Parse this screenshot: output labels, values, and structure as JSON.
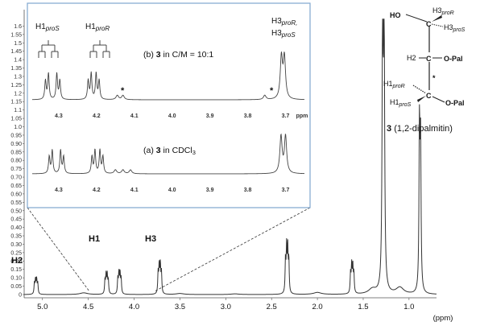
{
  "chart_data": [
    {
      "type": "line",
      "name": "main-spectrum",
      "xlabel": "(ppm)",
      "xlim": [
        5.2,
        0.7
      ],
      "ylim": [
        0,
        1.65
      ],
      "x_ticks": [
        "5.0",
        "4.5",
        "4.0",
        "3.5",
        "3.0",
        "2.5",
        "2.0",
        "1.5",
        "1.0"
      ],
      "y_ticks": [
        "0",
        "0.05",
        "0.10",
        "0.15",
        "0.20",
        "0.25",
        "0.30",
        "0.35",
        "0.40",
        "0.45",
        "0.50",
        "0.55",
        "0.60",
        "0.65",
        "0.70",
        "0.75",
        "0.80",
        "0.85",
        "0.90",
        "0.95",
        "1.0",
        "1.05",
        "1.1",
        "1.15",
        "1.2",
        "1.25",
        "1.3",
        "1.35",
        "1.4",
        "1.45",
        "1.5",
        "1.55",
        "1.6"
      ],
      "peaks": [
        {
          "label": "H2",
          "x": 5.07,
          "height": 0.085
        },
        {
          "label": "H1",
          "x": 4.3,
          "height": 0.11
        },
        {
          "label": "",
          "x": 4.16,
          "height": 0.12
        },
        {
          "label": "H3",
          "x": 3.72,
          "height": 0.165
        },
        {
          "label": "",
          "x": 2.33,
          "height": 0.26
        },
        {
          "label": "",
          "x": 1.62,
          "height": 0.16
        },
        {
          "label": "",
          "x": 1.28,
          "height": 1.62
        },
        {
          "label": "",
          "x": 0.88,
          "height": 0.97
        }
      ]
    },
    {
      "type": "line",
      "name": "inset-spectra",
      "xlabel": "ppm",
      "xlim": [
        4.37,
        3.65
      ],
      "x_ticks": [
        "4.3",
        "4.2",
        "4.1",
        "4.0",
        "3.9",
        "3.8",
        "3.7"
      ],
      "series": [
        {
          "name": "(b) 3 in C/M = 10:1",
          "peaks_ppm": [
            4.335,
            4.327,
            4.305,
            4.297,
            4.222,
            4.214,
            4.201,
            4.193,
            3.711,
            3.703
          ]
        },
        {
          "name": "(a) 3 in CDCl3",
          "peaks_ppm": [
            4.325,
            4.317,
            4.295,
            4.287,
            4.212,
            4.204,
            4.191,
            4.183,
            3.712,
            3.7
          ]
        }
      ]
    }
  ],
  "labels": {
    "main_x_ticks": [
      "5.0",
      "4.5",
      "4.0",
      "3.5",
      "3.0",
      "2.5",
      "2.0",
      "1.5",
      "1.0"
    ],
    "main_x_unit": "(ppm)",
    "y_ticks": [
      "0",
      "0.05",
      "0.10",
      "0.15",
      "0.20",
      "0.25",
      "0.30",
      "0.35",
      "0.40",
      "0.45",
      "0.50",
      "0.55",
      "0.60",
      "0.65",
      "0.70",
      "0.75",
      "0.80",
      "0.85",
      "0.90",
      "0.95",
      "1.0",
      "1.05",
      "1.1",
      "1.15",
      "1.2",
      "1.25",
      "1.3",
      "1.35",
      "1.4",
      "1.45",
      "1.5",
      "1.55",
      "1.6"
    ],
    "peak_h2": "H2",
    "peak_h1": "H1",
    "peak_h3": "H3",
    "inset_x_ticks": [
      "4.3",
      "4.2",
      "4.1",
      "4.0",
      "3.9",
      "3.8",
      "3.7"
    ],
    "inset_x_unit": "ppm",
    "trace_b_prefix": "(b)",
    "trace_b_compound": "3",
    "trace_b_suffix": "in C/M = 10:1",
    "trace_a_prefix": "(a)",
    "trace_a_compound": "3",
    "trace_a_suffix": "in CDCl",
    "trace_a_sub": "3",
    "h1pros_main": "H1",
    "h1pros_sub": "proS",
    "h1pror_main": "H1",
    "h1pror_sub": "proR",
    "h3_line1_main": "H3",
    "h3_line1_sub": "proR,",
    "h3_line2_main": "H3",
    "h3_line2_sub": "proS",
    "asterisk": "*"
  },
  "molecule": {
    "ho": "HO",
    "h3r_main": "H3",
    "h3r_sub": "proR",
    "h3s_main": "H3",
    "h3s_sub": "proS",
    "c": "C",
    "h2": "H2",
    "opal_top": "O-Pal",
    "h1r_main": "H1",
    "h1r_sub": "proR",
    "star": "*",
    "h1s_main": "H1",
    "h1s_sub": "proS",
    "opal_bottom": "O-Pal",
    "compound_number": "3",
    "compound_name": "(1,2-dipalmitin)"
  }
}
